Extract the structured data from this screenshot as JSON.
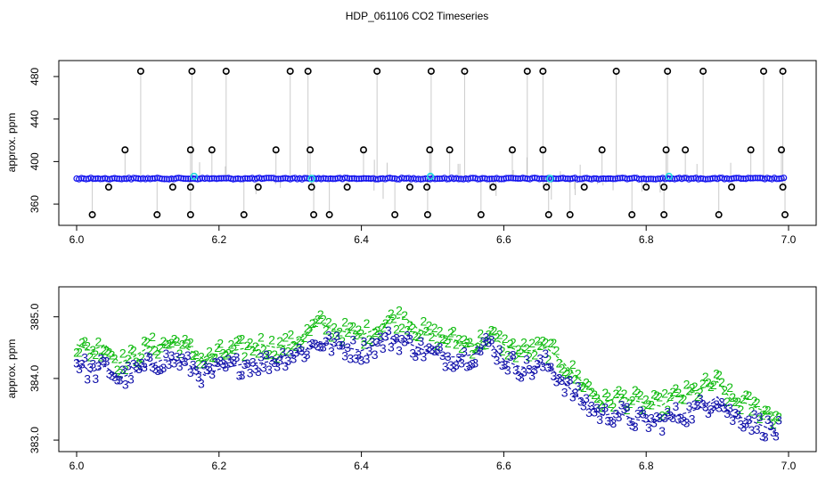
{
  "title": "HDP_061106  CO2 Timeseries",
  "colors": {
    "main_series": "#1111ee",
    "spikes": "#999999",
    "flagged": "#000000",
    "cyan_marks": "#22dddd",
    "series_2": "#11bb11",
    "series_3": "#1111aa"
  },
  "chart_data": [
    {
      "type": "scatter",
      "title": "",
      "xlabel": "",
      "ylabel": "approx. ppm",
      "xlim": [
        6.0,
        7.0
      ],
      "ylim": [
        345,
        490
      ],
      "x_ticks": [
        6.0,
        6.2,
        6.4,
        6.6,
        6.8,
        7.0
      ],
      "x_tick_labels": [
        "6.0",
        "6.2",
        "6.4",
        "6.6",
        "6.8",
        "7.0"
      ],
      "y_ticks": [
        360,
        400,
        440,
        480
      ],
      "y_tick_labels": [
        "360",
        "400",
        "440",
        "480"
      ],
      "baseline": 384,
      "flagged_high": [
        {
          "x": 6.09,
          "y": 485
        },
        {
          "x": 6.162,
          "y": 485
        },
        {
          "x": 6.21,
          "y": 485
        },
        {
          "x": 6.3,
          "y": 485
        },
        {
          "x": 6.325,
          "y": 485
        },
        {
          "x": 6.422,
          "y": 485
        },
        {
          "x": 6.498,
          "y": 485
        },
        {
          "x": 6.545,
          "y": 485
        },
        {
          "x": 6.633,
          "y": 485
        },
        {
          "x": 6.655,
          "y": 485
        },
        {
          "x": 6.758,
          "y": 485
        },
        {
          "x": 6.83,
          "y": 485
        },
        {
          "x": 6.88,
          "y": 485
        },
        {
          "x": 6.965,
          "y": 485
        },
        {
          "x": 6.992,
          "y": 485
        }
      ],
      "flagged_mid": [
        {
          "x": 6.068,
          "y": 411
        },
        {
          "x": 6.16,
          "y": 411
        },
        {
          "x": 6.19,
          "y": 411
        },
        {
          "x": 6.28,
          "y": 411
        },
        {
          "x": 6.328,
          "y": 411
        },
        {
          "x": 6.403,
          "y": 411
        },
        {
          "x": 6.496,
          "y": 411
        },
        {
          "x": 6.524,
          "y": 411
        },
        {
          "x": 6.612,
          "y": 411
        },
        {
          "x": 6.655,
          "y": 411
        },
        {
          "x": 6.738,
          "y": 411
        },
        {
          "x": 6.828,
          "y": 411
        },
        {
          "x": 6.855,
          "y": 411
        },
        {
          "x": 6.947,
          "y": 411
        },
        {
          "x": 6.99,
          "y": 411
        }
      ],
      "flagged_low": [
        {
          "x": 6.045,
          "y": 376
        },
        {
          "x": 6.135,
          "y": 376
        },
        {
          "x": 6.16,
          "y": 376
        },
        {
          "x": 6.255,
          "y": 376
        },
        {
          "x": 6.33,
          "y": 376
        },
        {
          "x": 6.38,
          "y": 376
        },
        {
          "x": 6.468,
          "y": 376
        },
        {
          "x": 6.492,
          "y": 376
        },
        {
          "x": 6.585,
          "y": 376
        },
        {
          "x": 6.66,
          "y": 376
        },
        {
          "x": 6.713,
          "y": 376
        },
        {
          "x": 6.8,
          "y": 376
        },
        {
          "x": 6.825,
          "y": 376
        },
        {
          "x": 6.92,
          "y": 376
        },
        {
          "x": 6.992,
          "y": 376
        }
      ],
      "flagged_bottom": [
        {
          "x": 6.022,
          "y": 350
        },
        {
          "x": 6.113,
          "y": 350
        },
        {
          "x": 6.16,
          "y": 350
        },
        {
          "x": 6.235,
          "y": 350
        },
        {
          "x": 6.333,
          "y": 350
        },
        {
          "x": 6.355,
          "y": 350
        },
        {
          "x": 6.447,
          "y": 350
        },
        {
          "x": 6.493,
          "y": 350
        },
        {
          "x": 6.568,
          "y": 350
        },
        {
          "x": 6.663,
          "y": 350
        },
        {
          "x": 6.693,
          "y": 350
        },
        {
          "x": 6.78,
          "y": 350
        },
        {
          "x": 6.825,
          "y": 350
        },
        {
          "x": 6.902,
          "y": 350
        },
        {
          "x": 6.995,
          "y": 350
        }
      ],
      "cyan_points": [
        {
          "x": 6.165,
          "y": 386
        },
        {
          "x": 6.33,
          "y": 384
        },
        {
          "x": 6.497,
          "y": 386
        },
        {
          "x": 6.665,
          "y": 384
        },
        {
          "x": 6.832,
          "y": 386
        }
      ]
    },
    {
      "type": "line",
      "title": "",
      "xlabel": "",
      "ylabel": "approx. ppm",
      "xlim": [
        6.0,
        7.0
      ],
      "ylim": [
        382.9,
        385.4
      ],
      "x_ticks": [
        6.0,
        6.2,
        6.4,
        6.6,
        6.8,
        7.0
      ],
      "x_tick_labels": [
        "6.0",
        "6.2",
        "6.4",
        "6.6",
        "6.8",
        "7.0"
      ],
      "y_ticks": [
        383.0,
        384.0,
        385.0
      ],
      "y_tick_labels": [
        "383.0",
        "384.0",
        "385.0"
      ],
      "series": [
        {
          "marker": "2",
          "points": [
            [
              6.0,
              384.55
            ],
            [
              6.02,
              384.45
            ],
            [
              6.04,
              384.55
            ],
            [
              6.06,
              384.25
            ],
            [
              6.08,
              384.35
            ],
            [
              6.1,
              384.5
            ],
            [
              6.12,
              384.55
            ],
            [
              6.14,
              384.6
            ],
            [
              6.16,
              384.45
            ],
            [
              6.18,
              384.3
            ],
            [
              6.2,
              384.4
            ],
            [
              6.22,
              384.45
            ],
            [
              6.24,
              384.5
            ],
            [
              6.26,
              384.55
            ],
            [
              6.28,
              384.5
            ],
            [
              6.3,
              384.55
            ],
            [
              6.32,
              384.7
            ],
            [
              6.34,
              384.9
            ],
            [
              6.36,
              384.8
            ],
            [
              6.38,
              384.75
            ],
            [
              6.4,
              384.7
            ],
            [
              6.42,
              384.8
            ],
            [
              6.44,
              384.95
            ],
            [
              6.46,
              385.0
            ],
            [
              6.48,
              384.8
            ],
            [
              6.5,
              384.7
            ],
            [
              6.52,
              384.65
            ],
            [
              6.54,
              384.6
            ],
            [
              6.56,
              384.55
            ],
            [
              6.58,
              384.7
            ],
            [
              6.6,
              384.55
            ],
            [
              6.62,
              384.45
            ],
            [
              6.64,
              384.45
            ],
            [
              6.66,
              384.5
            ],
            [
              6.68,
              384.3
            ],
            [
              6.7,
              384.05
            ],
            [
              6.72,
              383.85
            ],
            [
              6.74,
              383.6
            ],
            [
              6.76,
              383.7
            ],
            [
              6.78,
              383.65
            ],
            [
              6.8,
              383.6
            ],
            [
              6.82,
              383.55
            ],
            [
              6.84,
              383.7
            ],
            [
              6.86,
              383.75
            ],
            [
              6.88,
              383.85
            ],
            [
              6.9,
              383.95
            ],
            [
              6.92,
              383.65
            ],
            [
              6.94,
              383.6
            ],
            [
              6.96,
              383.5
            ],
            [
              6.98,
              383.4
            ]
          ]
        },
        {
          "marker": "3",
          "points": [
            [
              6.0,
              384.3
            ],
            [
              6.02,
              384.1
            ],
            [
              6.04,
              384.2
            ],
            [
              6.06,
              384.0
            ],
            [
              6.08,
              384.1
            ],
            [
              6.1,
              384.2
            ],
            [
              6.12,
              384.3
            ],
            [
              6.14,
              384.3
            ],
            [
              6.16,
              384.2
            ],
            [
              6.18,
              384.05
            ],
            [
              6.2,
              384.15
            ],
            [
              6.22,
              384.2
            ],
            [
              6.24,
              384.25
            ],
            [
              6.26,
              384.25
            ],
            [
              6.28,
              384.3
            ],
            [
              6.3,
              384.4
            ],
            [
              6.32,
              384.45
            ],
            [
              6.34,
              384.6
            ],
            [
              6.36,
              384.55
            ],
            [
              6.38,
              384.5
            ],
            [
              6.4,
              384.45
            ],
            [
              6.42,
              384.55
            ],
            [
              6.44,
              384.65
            ],
            [
              6.46,
              384.6
            ],
            [
              6.48,
              384.5
            ],
            [
              6.5,
              384.4
            ],
            [
              6.52,
              384.35
            ],
            [
              6.54,
              384.35
            ],
            [
              6.56,
              384.4
            ],
            [
              6.58,
              384.6
            ],
            [
              6.6,
              384.3
            ],
            [
              6.62,
              384.2
            ],
            [
              6.64,
              384.15
            ],
            [
              6.66,
              384.25
            ],
            [
              6.68,
              384.0
            ],
            [
              6.7,
              383.75
            ],
            [
              6.72,
              383.55
            ],
            [
              6.74,
              383.4
            ],
            [
              6.76,
              383.45
            ],
            [
              6.78,
              383.35
            ],
            [
              6.8,
              383.3
            ],
            [
              6.82,
              383.3
            ],
            [
              6.84,
              383.4
            ],
            [
              6.86,
              383.45
            ],
            [
              6.88,
              383.55
            ],
            [
              6.9,
              383.7
            ],
            [
              6.92,
              383.4
            ],
            [
              6.94,
              383.35
            ],
            [
              6.96,
              383.25
            ],
            [
              6.98,
              383.15
            ]
          ]
        }
      ]
    }
  ]
}
